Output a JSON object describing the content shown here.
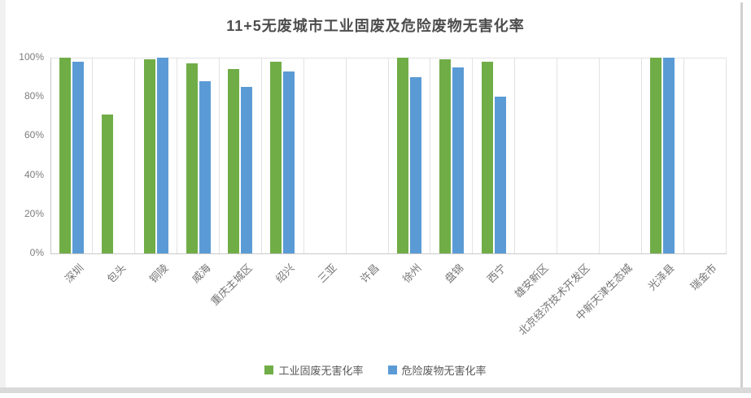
{
  "chart_data": {
    "type": "bar",
    "title": "11+5无废城市工业固废及危险废物无害化率",
    "categories": [
      "深圳",
      "包头",
      "铜陵",
      "威海",
      "重庆主城区",
      "绍兴",
      "三亚",
      "许昌",
      "徐州",
      "盘锦",
      "西宁",
      "雄安新区",
      "北京经济技术开发区",
      "中新天津生态城",
      "光泽县",
      "瑞金市"
    ],
    "series": [
      {
        "name": "工业固废无害化率",
        "color": "#70ad47",
        "values": [
          100,
          71,
          99,
          97,
          94,
          98,
          null,
          null,
          100,
          99,
          98,
          null,
          null,
          null,
          100,
          null
        ]
      },
      {
        "name": "危险废物无害化率",
        "color": "#5b9bd5",
        "values": [
          98,
          null,
          100,
          88,
          85,
          93,
          null,
          null,
          90,
          95,
          80,
          null,
          null,
          null,
          100,
          null
        ]
      }
    ],
    "y_ticks": [
      "100%",
      "80%",
      "60%",
      "40%",
      "20%",
      "0%"
    ],
    "ylim": [
      0,
      100
    ],
    "grid": "vertical-category-separators",
    "legend_position": "bottom",
    "colors": {
      "series1": "#70ad47",
      "series2": "#5b9bd5",
      "gridline": "#e2e2e2",
      "axis": "#c9c9c9",
      "tick_text": "#757575",
      "title_text": "#4d4d4d"
    }
  }
}
